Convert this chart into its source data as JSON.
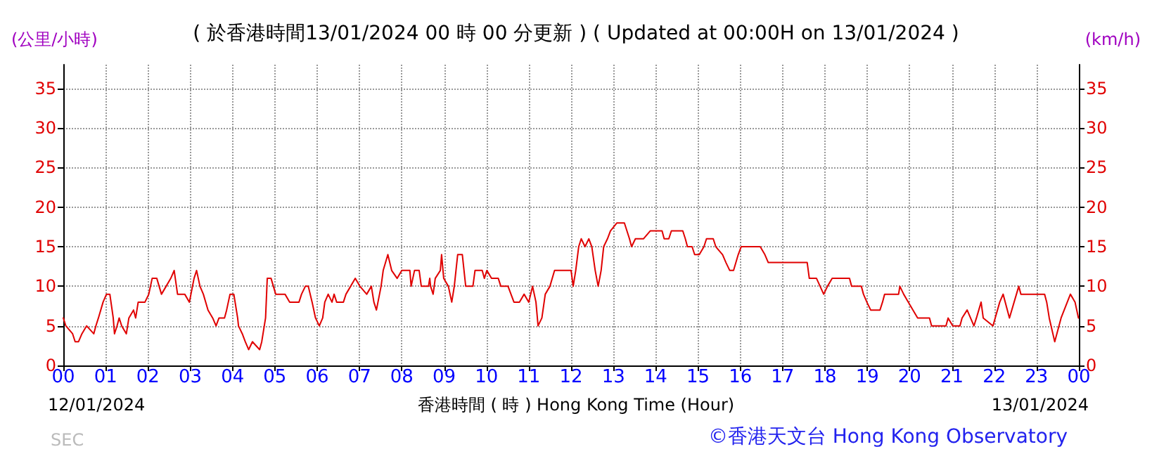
{
  "chart_data": {
    "type": "line",
    "title": "( 於香港時間13/01/2024 00 時 00 分更新 ) ( Updated at 00:00H on 13/01/2024 )",
    "xlabel": "香港時間 ( 時 ) Hong Kong Time (Hour)",
    "ylabel": "(公里/小時)",
    "y2label": "(km/h)",
    "annotations": [
      "12/01/2024",
      "13/01/2024",
      "SEC",
      "©香港天文台 Hong Kong Observatory"
    ],
    "series": [
      {
        "color": "#e00000",
        "x": [
          0,
          0.06,
          0.22,
          0.28,
          0.36,
          0.44,
          0.55,
          0.72,
          0.77,
          0.83,
          0.94,
          1.02,
          1.1,
          1.18,
          1.21,
          1.27,
          1.32,
          1.38,
          1.49,
          1.55,
          1.66,
          1.71,
          1.77,
          1.93,
          2.02,
          2.1,
          2.21,
          2.32,
          2.43,
          2.54,
          2.62,
          2.7,
          2.87,
          2.98,
          3.09,
          3.15,
          3.23,
          3.31,
          3.42,
          3.53,
          3.61,
          3.68,
          3.81,
          3.86,
          3.94,
          4.03,
          4.12,
          4.14,
          4.23,
          4.3,
          4.38,
          4.47,
          4.64,
          4.69,
          4.78,
          4.82,
          4.91,
          5.02,
          5.24,
          5.35,
          5.57,
          5.63,
          5.72,
          5.79,
          5.88,
          5.96,
          6.05,
          6.13,
          6.18,
          6.26,
          6.35,
          6.4,
          6.46,
          6.62,
          6.68,
          6.79,
          6.9,
          7.01,
          7.17,
          7.28,
          7.34,
          7.4,
          7.51,
          7.56,
          7.67,
          7.76,
          7.89,
          8.0,
          8.19,
          8.22,
          8.3,
          8.41,
          8.46,
          8.63,
          8.66,
          8.68,
          8.74,
          8.79,
          8.91,
          8.94,
          8.99,
          9.1,
          9.18,
          9.24,
          9.32,
          9.43,
          9.51,
          9.68,
          9.73,
          9.9,
          9.95,
          10.01,
          10.12,
          10.28,
          10.34,
          10.51,
          10.65,
          10.78,
          10.89,
          11.0,
          11.09,
          11.17,
          11.22,
          11.31,
          11.39,
          11.5,
          11.61,
          12.0,
          12.05,
          12.11,
          12.18,
          12.24,
          12.33,
          12.42,
          12.49,
          12.57,
          12.64,
          12.71,
          12.77,
          12.86,
          12.93,
          13.08,
          13.26,
          13.38,
          13.43,
          13.52,
          13.6,
          13.71,
          13.87,
          14.15,
          14.2,
          14.31,
          14.37,
          14.64,
          14.7,
          14.75,
          14.86,
          14.92,
          15.03,
          15.14,
          15.2,
          15.36,
          15.42,
          15.58,
          15.66,
          15.75,
          15.84,
          15.95,
          16.02,
          16.25,
          16.47,
          16.58,
          16.66,
          17.58,
          17.63,
          17.8,
          17.97,
          18.06,
          18.17,
          18.58,
          18.63,
          18.86,
          18.91,
          18.99,
          19.08,
          19.3,
          19.36,
          19.41,
          19.74,
          19.77,
          19.86,
          19.97,
          20.19,
          20.47,
          20.52,
          20.86,
          20.91,
          21.02,
          21.19,
          21.24,
          21.36,
          21.52,
          21.58,
          21.69,
          21.74,
          21.97,
          22.13,
          22.21,
          22.36,
          22.47,
          22.58,
          22.63,
          23.19,
          23.24,
          23.3,
          23.43,
          23.58,
          23.8,
          23.91,
          23.99
        ],
        "values": [
          6,
          5,
          4,
          3,
          3,
          4,
          5,
          4,
          5,
          6,
          8,
          9,
          9,
          6,
          4,
          5,
          6,
          5,
          4,
          6,
          7,
          6,
          8,
          8,
          9,
          11,
          11,
          9,
          10,
          11,
          12,
          9,
          9,
          8,
          11,
          12,
          10,
          9,
          7,
          6,
          5,
          6,
          6,
          7,
          9,
          9,
          6,
          5,
          4,
          3,
          2,
          3,
          2,
          3,
          6,
          11,
          11,
          9,
          9,
          8,
          8,
          9,
          10,
          10,
          8,
          6,
          5,
          6,
          8,
          9,
          8,
          9,
          8,
          8,
          9,
          10,
          11,
          10,
          9,
          10,
          8,
          7,
          10,
          12,
          14,
          12,
          11,
          12,
          12,
          10,
          12,
          12,
          10,
          10,
          11,
          10,
          9,
          11,
          12,
          14,
          11,
          10,
          8,
          10,
          14,
          14,
          10,
          10,
          12,
          12,
          11,
          12,
          11,
          11,
          10,
          10,
          8,
          8,
          9,
          8,
          10,
          8,
          5,
          6,
          9,
          10,
          12,
          12,
          10,
          12,
          15,
          16,
          15,
          16,
          15,
          12,
          10,
          12,
          15,
          16,
          17,
          18,
          18,
          16,
          15,
          16,
          16,
          16,
          17,
          17,
          16,
          16,
          17,
          17,
          16,
          15,
          15,
          14,
          14,
          15,
          16,
          16,
          15,
          14,
          13,
          12,
          12,
          14,
          15,
          15,
          15,
          14,
          13,
          13,
          11,
          11,
          9,
          10,
          11,
          11,
          10,
          10,
          9,
          8,
          7,
          7,
          8,
          9,
          9,
          10,
          9,
          8,
          6,
          6,
          5,
          5,
          6,
          5,
          5,
          6,
          7,
          5,
          6,
          8,
          6,
          5,
          8,
          9,
          6,
          8,
          10,
          9,
          9,
          8,
          6,
          3,
          6,
          9,
          8,
          6
        ]
      }
    ],
    "xlim": [
      0,
      24
    ],
    "xticks": [
      {
        "value": 0,
        "label": "00"
      },
      {
        "value": 1,
        "label": "01"
      },
      {
        "value": 2,
        "label": "02"
      },
      {
        "value": 3,
        "label": "03"
      },
      {
        "value": 4,
        "label": "04"
      },
      {
        "value": 5,
        "label": "05"
      },
      {
        "value": 6,
        "label": "06"
      },
      {
        "value": 7,
        "label": "07"
      },
      {
        "value": 8,
        "label": "08"
      },
      {
        "value": 9,
        "label": "09"
      },
      {
        "value": 10,
        "label": "10"
      },
      {
        "value": 11,
        "label": "11"
      },
      {
        "value": 12,
        "label": "12"
      },
      {
        "value": 13,
        "label": "13"
      },
      {
        "value": 14,
        "label": "14"
      },
      {
        "value": 15,
        "label": "15"
      },
      {
        "value": 16,
        "label": "16"
      },
      {
        "value": 17,
        "label": "17"
      },
      {
        "value": 18,
        "label": "18"
      },
      {
        "value": 19,
        "label": "19"
      },
      {
        "value": 20,
        "label": "20"
      },
      {
        "value": 21,
        "label": "21"
      },
      {
        "value": 22,
        "label": "22"
      },
      {
        "value": 23,
        "label": "23"
      },
      {
        "value": 24,
        "label": "00"
      }
    ],
    "ylim": [
      0,
      38
    ],
    "yticks": [
      0,
      5,
      10,
      15,
      20,
      25,
      30,
      35
    ],
    "y2lim": [
      0,
      38
    ],
    "y2ticks": [
      0,
      5,
      10,
      15,
      20,
      25,
      30,
      35
    ],
    "grid": true,
    "marker": "none",
    "line_style": "solid"
  }
}
